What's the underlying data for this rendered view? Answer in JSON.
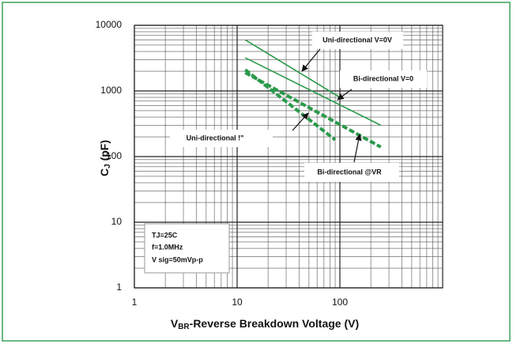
{
  "chart_data": {
    "type": "line",
    "xlog": true,
    "ylog": true,
    "grid": true,
    "x_label": {
      "main": "V",
      "sub": "BR",
      "rest": "-Reverse Breakdown Voltage (V)"
    },
    "y_label": {
      "main": "C",
      "sub": "J",
      "rest": " (pF)"
    },
    "xlim": [
      1,
      1000
    ],
    "xticks": [
      1,
      10,
      100
    ],
    "ylim": [
      1,
      10000
    ],
    "yticks": [
      1,
      10,
      100,
      1000,
      10000
    ],
    "conditions": [
      "TJ=25C",
      "f=1.0MHz",
      "V sig=50mVp-p"
    ],
    "series": [
      {
        "name": "Uni-directional V=0V",
        "color": "#2a9a4a",
        "style": "solid",
        "x": [
          12,
          100
        ],
        "values": [
          6000,
          800
        ]
      },
      {
        "name": "Bi-directional V=0",
        "color": "#2a9a4a",
        "style": "solid",
        "x": [
          12,
          250
        ],
        "values": [
          3200,
          300
        ]
      },
      {
        "name": "Uni-directional !\"",
        "color": "#2a9a4a",
        "style": "dashed",
        "x": [
          12,
          90
        ],
        "values": [
          2100,
          180
        ]
      },
      {
        "name": "Bi-directional @VR",
        "color": "#2a9a4a",
        "style": "dashed",
        "x": [
          12,
          250
        ],
        "values": [
          1900,
          140
        ]
      }
    ]
  }
}
